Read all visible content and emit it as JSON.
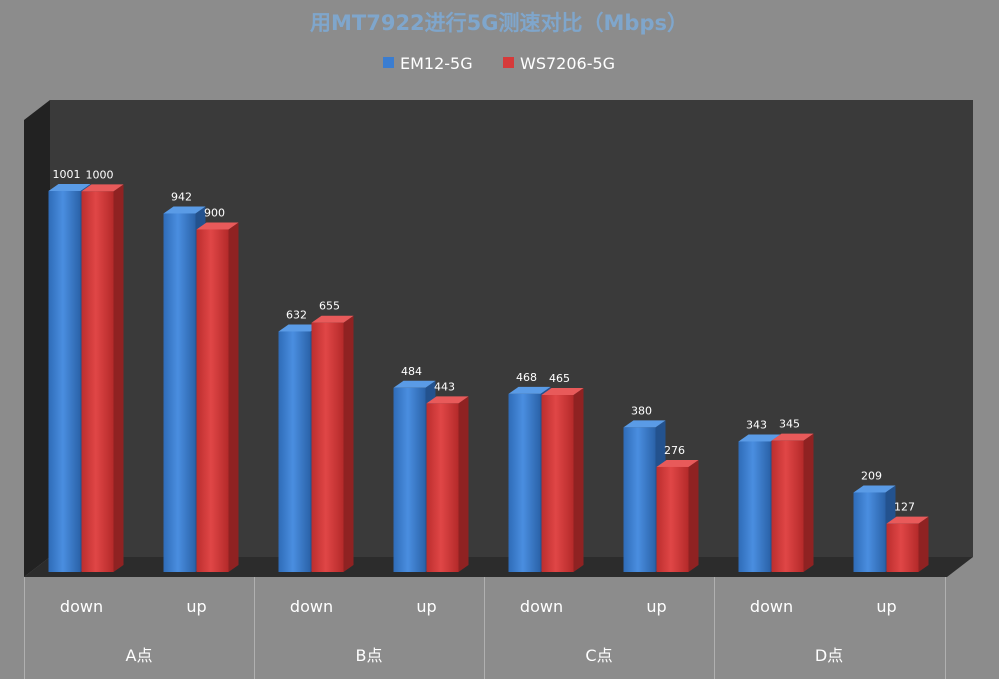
{
  "colors": {
    "background": "#8c8c8c",
    "plot_back": "#3a3a3a",
    "plot_side": "#222222",
    "plot_floor": "#2c2c2c",
    "title": "#7fa6cc",
    "axis_lines": "#b0b0b0"
  },
  "chart_data": {
    "type": "bar",
    "title": "用MT7922进行5G测速对比（Mbps）",
    "categories": [
      "down",
      "up",
      "down",
      "up",
      "down",
      "up",
      "down",
      "up"
    ],
    "groups": [
      "A点",
      "B点",
      "C点",
      "D点"
    ],
    "series": [
      {
        "name": "EM12-5G",
        "color": "#3b7dd0",
        "values": [
          1001,
          942,
          632,
          484,
          468,
          380,
          343,
          209
        ]
      },
      {
        "name": "WS7206-5G",
        "color": "#d63a3a",
        "values": [
          1000,
          900,
          655,
          443,
          465,
          276,
          345,
          127
        ]
      }
    ],
    "ylim": [
      0,
      1001
    ],
    "legend": "top",
    "grid": false,
    "data_labels": true
  }
}
